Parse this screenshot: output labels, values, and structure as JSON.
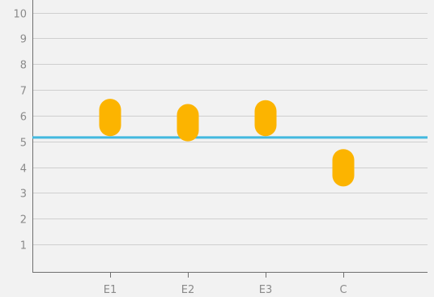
{
  "chart_data": {
    "type": "range-bar",
    "title": "",
    "xlabel": "",
    "ylabel": "",
    "categories": [
      "E1",
      "E2",
      "E3",
      "C"
    ],
    "ranges": [
      {
        "category": "E1",
        "low": 5.2,
        "high": 6.65
      },
      {
        "category": "E2",
        "low": 5.0,
        "high": 6.45
      },
      {
        "category": "E3",
        "low": 5.2,
        "high": 6.6
      },
      {
        "category": "C",
        "low": 3.25,
        "high": 4.7
      }
    ],
    "reference_line": {
      "value": 5.15,
      "color": "#43b9df"
    },
    "ylim": [
      0,
      10.5
    ],
    "yticks": [
      1,
      2,
      3,
      4,
      5,
      6,
      7,
      8,
      9,
      10
    ],
    "grid": true,
    "colors": {
      "bar": "#fcb400",
      "grid": "#cfcfcf",
      "axis": "#707070",
      "tick_text": "#8a8a8a",
      "background": "#f2f2f2"
    }
  }
}
